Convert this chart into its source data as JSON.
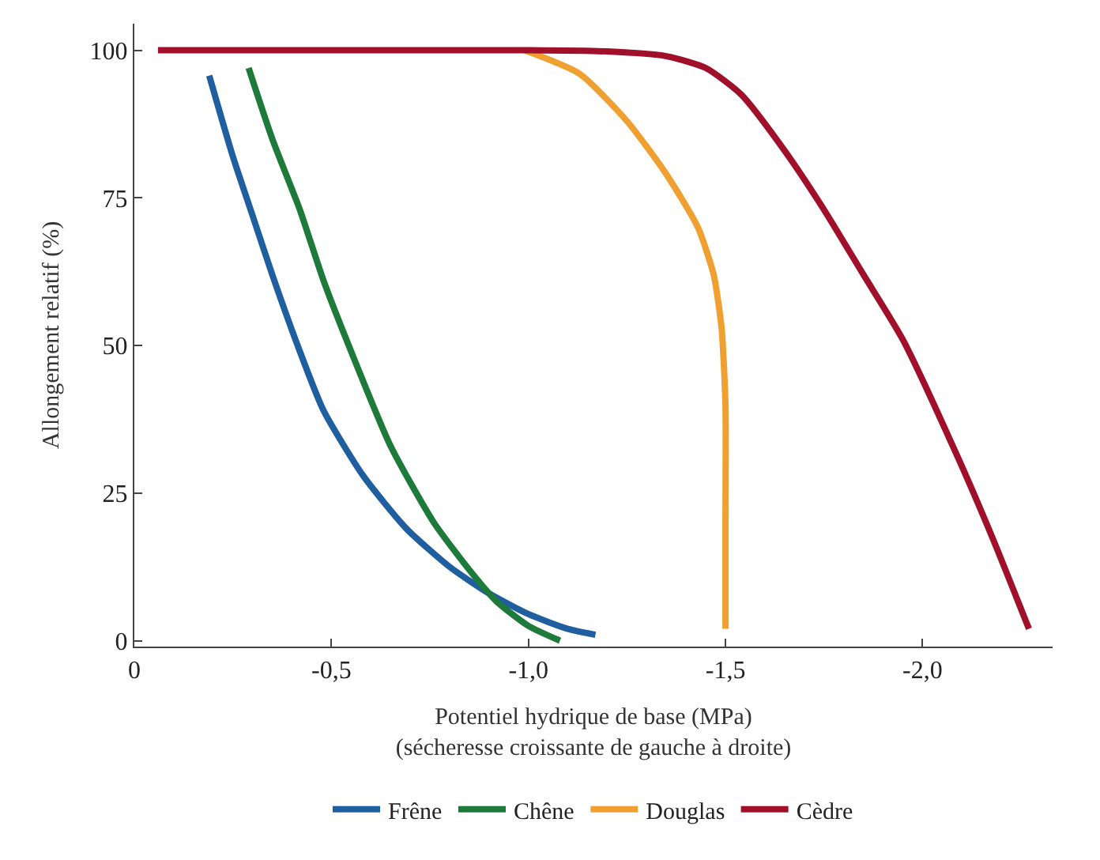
{
  "chart_data": {
    "type": "line",
    "xlabel": "Potentiel hydrique de base (MPa)\n(sécheresse croissante de gauche à droite)",
    "ylabel": "Allongement relatif (%)",
    "xlim": [
      0,
      -2.33
    ],
    "ylim": [
      -1,
      104.5
    ],
    "xticks": [
      {
        "value": 0,
        "label": "0"
      },
      {
        "value": -0.5,
        "label": "-0,5"
      },
      {
        "value": -1.0,
        "label": "-1,0"
      },
      {
        "value": -1.5,
        "label": "-1,5"
      },
      {
        "value": -2.0,
        "label": "-2,0"
      }
    ],
    "yticks": [
      0,
      25,
      50,
      75,
      100
    ],
    "legend": "bottom",
    "marker": "none",
    "line_style": "solid",
    "series": [
      {
        "name": "Frêne",
        "color": "#1f5fa0",
        "x": [
          -0.19,
          -0.25,
          -0.3,
          -0.35,
          -0.42,
          -0.48,
          -0.58,
          -0.69,
          -0.8,
          -0.9,
          -1.0,
          -1.1,
          -1.17
        ],
        "values": [
          95.7,
          82,
          72,
          62,
          49,
          39,
          28,
          19,
          12.5,
          8,
          4.5,
          2,
          1
        ]
      },
      {
        "name": "Chêne",
        "color": "#1e7a3a",
        "x": [
          -0.29,
          -0.35,
          -0.42,
          -0.48,
          -0.55,
          -0.65,
          -0.76,
          -0.85,
          -0.92,
          -1.0,
          -1.08
        ],
        "values": [
          97,
          85,
          73,
          61,
          49,
          33,
          20,
          12,
          6.6,
          2.5,
          0
        ]
      },
      {
        "name": "Douglas",
        "color": "#f0a030",
        "x": [
          -0.99,
          -1.13,
          -1.25,
          -1.35,
          -1.43,
          -1.47,
          -1.49,
          -1.5,
          -1.5,
          -1.5
        ],
        "values": [
          100,
          96,
          88,
          79,
          70,
          62,
          53,
          40,
          20,
          2
        ]
      },
      {
        "name": "Cèdre",
        "color": "#a0102a",
        "x": [
          -0.06,
          -1.0,
          -1.2,
          -1.35,
          -1.45,
          -1.54,
          -1.65,
          -1.75,
          -1.85,
          -1.95,
          -2.09,
          -2.18,
          -2.27
        ],
        "values": [
          100,
          100,
          99.8,
          99,
          97,
          92.5,
          83,
          73,
          62,
          51,
          31,
          17,
          2
        ]
      }
    ]
  }
}
